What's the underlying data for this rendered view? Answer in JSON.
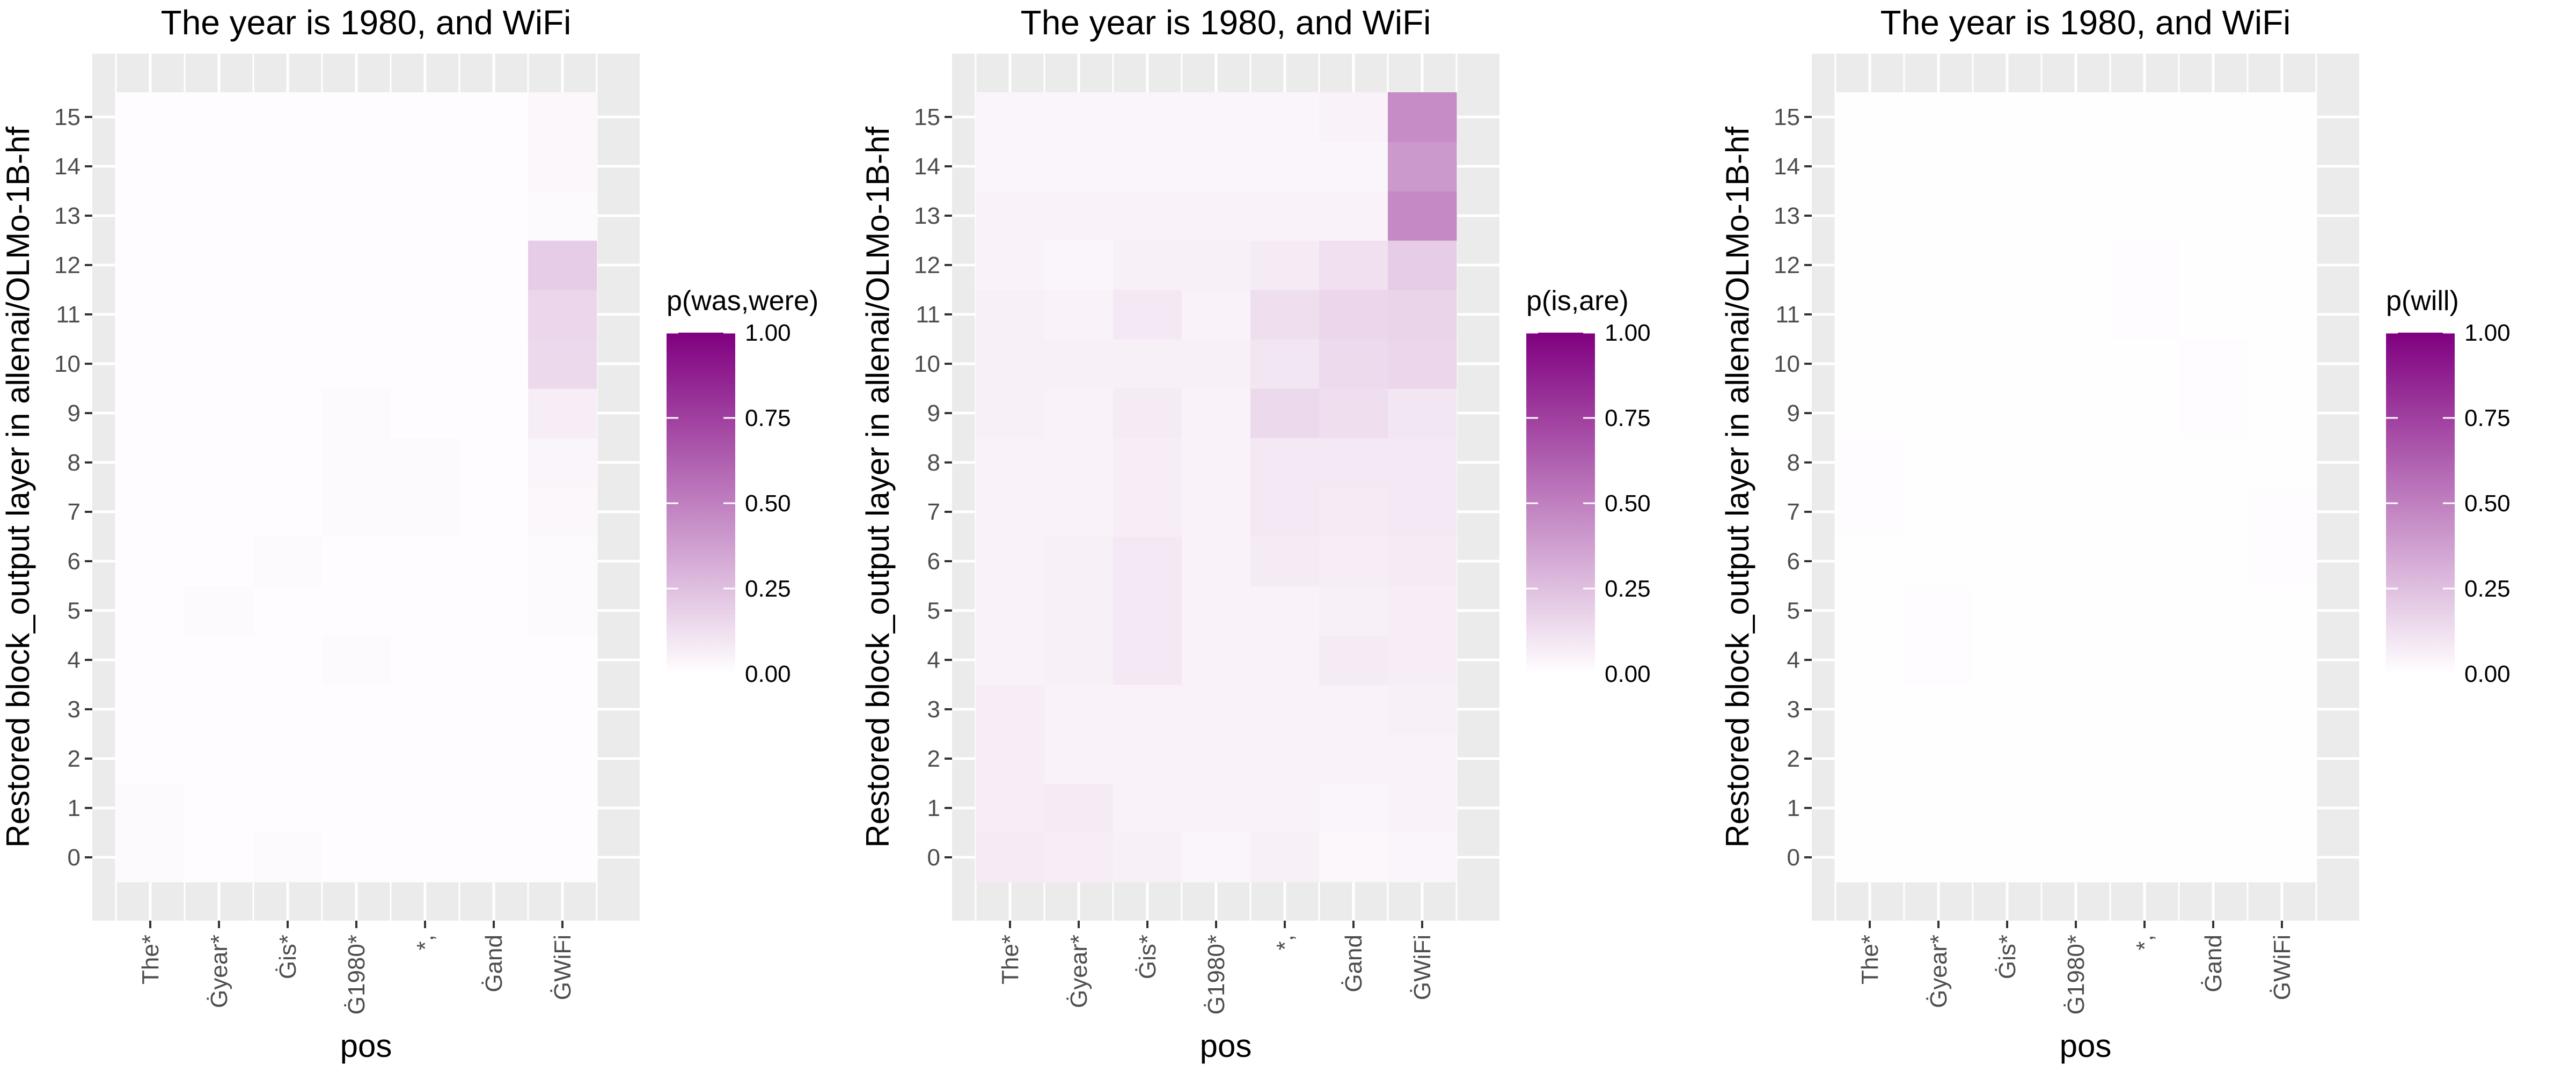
{
  "figure": {
    "palette": {
      "low": "#ffffff",
      "high": "#800080",
      "panel_background": "#ebebeb",
      "grid": "#ffffff",
      "tick_text": "#4d4d4d",
      "tick_mark": "#333333"
    }
  },
  "chart_data": [
    {
      "type": "heatmap",
      "title": "The year is 1980, and WiFi",
      "xlabel": "pos",
      "ylabel": "Restored block_output layer in allenai/OLMo-1B-hf",
      "x_ticks": [
        "The*",
        "Ġyear*",
        "Ġis*",
        "Ġ1980*",
        "*,",
        "Ġand",
        "ĠWiFi"
      ],
      "y_ticks": [
        0,
        1,
        2,
        3,
        4,
        5,
        6,
        7,
        8,
        9,
        10,
        11,
        12,
        13,
        14,
        15
      ],
      "legend": {
        "title": "p(was,were)",
        "breaks": [
          0,
          0.25,
          0.5,
          0.75,
          1
        ],
        "break_labels": [
          "0.00",
          "0.25",
          "0.50",
          "0.75",
          "1.00"
        ],
        "limits": [
          0,
          1
        ]
      },
      "z": [
        [
          0.02,
          0.01,
          0.02,
          0.01,
          0.01,
          0.01,
          0.01
        ],
        [
          0.02,
          0.01,
          0.01,
          0.01,
          0.01,
          0.01,
          0.01
        ],
        [
          0.01,
          0.01,
          0.01,
          0.01,
          0.01,
          0.01,
          0.01
        ],
        [
          0.01,
          0.01,
          0.01,
          0.01,
          0.01,
          0.01,
          0.01
        ],
        [
          0.01,
          0.01,
          0.01,
          0.02,
          0.01,
          0.01,
          0.01
        ],
        [
          0.01,
          0.02,
          0.01,
          0.01,
          0.01,
          0.01,
          0.02
        ],
        [
          0.01,
          0.01,
          0.02,
          0.01,
          0.01,
          0.01,
          0.02
        ],
        [
          0.01,
          0.01,
          0.01,
          0.02,
          0.02,
          0.01,
          0.03
        ],
        [
          0.01,
          0.01,
          0.01,
          0.02,
          0.02,
          0.01,
          0.04
        ],
        [
          0.01,
          0.01,
          0.01,
          0.02,
          0.01,
          0.01,
          0.07
        ],
        [
          0.01,
          0.01,
          0.01,
          0.01,
          0.01,
          0.01,
          0.15
        ],
        [
          0.01,
          0.01,
          0.01,
          0.01,
          0.01,
          0.01,
          0.16
        ],
        [
          0.01,
          0.01,
          0.01,
          0.01,
          0.01,
          0.01,
          0.2
        ],
        [
          0.01,
          0.01,
          0.01,
          0.01,
          0.01,
          0.01,
          0.02
        ],
        [
          0.01,
          0.01,
          0.01,
          0.01,
          0.01,
          0.01,
          0.03
        ],
        [
          0.01,
          0.01,
          0.01,
          0.01,
          0.01,
          0.01,
          0.03
        ]
      ]
    },
    {
      "type": "heatmap",
      "title": "The year is 1980, and WiFi",
      "xlabel": "pos",
      "ylabel": "Restored block_output layer in allenai/OLMo-1B-hf",
      "x_ticks": [
        "The*",
        "Ġyear*",
        "Ġis*",
        "Ġ1980*",
        "*,",
        "Ġand",
        "ĠWiFi"
      ],
      "y_ticks": [
        0,
        1,
        2,
        3,
        4,
        5,
        6,
        7,
        8,
        9,
        10,
        11,
        12,
        13,
        14,
        15
      ],
      "legend": {
        "title": "p(is,are)",
        "breaks": [
          0,
          0.25,
          0.5,
          0.75,
          1
        ],
        "break_labels": [
          "0.00",
          "0.25",
          "0.50",
          "0.75",
          "1.00"
        ],
        "limits": [
          0,
          1
        ]
      },
      "z": [
        [
          0.08,
          0.07,
          0.06,
          0.04,
          0.06,
          0.03,
          0.04
        ],
        [
          0.07,
          0.08,
          0.05,
          0.05,
          0.05,
          0.04,
          0.05
        ],
        [
          0.07,
          0.05,
          0.05,
          0.05,
          0.05,
          0.05,
          0.05
        ],
        [
          0.07,
          0.05,
          0.05,
          0.05,
          0.05,
          0.05,
          0.06
        ],
        [
          0.05,
          0.06,
          0.09,
          0.05,
          0.05,
          0.08,
          0.07
        ],
        [
          0.05,
          0.06,
          0.09,
          0.05,
          0.05,
          0.06,
          0.07
        ],
        [
          0.05,
          0.06,
          0.09,
          0.05,
          0.08,
          0.07,
          0.08
        ],
        [
          0.05,
          0.05,
          0.07,
          0.05,
          0.09,
          0.08,
          0.09
        ],
        [
          0.05,
          0.05,
          0.07,
          0.05,
          0.09,
          0.09,
          0.09
        ],
        [
          0.06,
          0.05,
          0.08,
          0.05,
          0.15,
          0.13,
          0.1
        ],
        [
          0.06,
          0.06,
          0.06,
          0.06,
          0.1,
          0.14,
          0.16
        ],
        [
          0.06,
          0.05,
          0.09,
          0.05,
          0.13,
          0.16,
          0.17
        ],
        [
          0.05,
          0.04,
          0.06,
          0.06,
          0.08,
          0.12,
          0.2
        ],
        [
          0.05,
          0.05,
          0.05,
          0.05,
          0.05,
          0.05,
          0.46
        ],
        [
          0.04,
          0.04,
          0.04,
          0.04,
          0.04,
          0.04,
          0.4
        ],
        [
          0.04,
          0.04,
          0.04,
          0.04,
          0.04,
          0.05,
          0.45
        ]
      ]
    },
    {
      "type": "heatmap",
      "title": "The year is 1980, and WiFi",
      "xlabel": "pos",
      "ylabel": "Restored block_output layer in allenai/OLMo-1B-hf",
      "x_ticks": [
        "The*",
        "Ġyear*",
        "Ġis*",
        "Ġ1980*",
        "*,",
        "Ġand",
        "ĠWiFi"
      ],
      "y_ticks": [
        0,
        1,
        2,
        3,
        4,
        5,
        6,
        7,
        8,
        9,
        10,
        11,
        12,
        13,
        14,
        15
      ],
      "legend": {
        "title": "p(will)",
        "breaks": [
          0,
          0.25,
          0.5,
          0.75,
          1
        ],
        "break_labels": [
          "0.00",
          "0.25",
          "0.50",
          "0.75",
          "1.00"
        ],
        "limits": [
          0,
          1
        ]
      },
      "z": [
        [
          0.005,
          0.005,
          0.005,
          0.005,
          0.005,
          0.005,
          0.005
        ],
        [
          0.005,
          0.005,
          0.005,
          0.005,
          0.005,
          0.005,
          0.005
        ],
        [
          0.005,
          0.005,
          0.005,
          0.005,
          0.005,
          0.005,
          0.005
        ],
        [
          0.005,
          0.005,
          0.005,
          0.005,
          0.005,
          0.005,
          0.005
        ],
        [
          0.005,
          0.01,
          0.005,
          0.005,
          0.005,
          0.005,
          0.005
        ],
        [
          0.005,
          0.01,
          0.005,
          0.005,
          0.005,
          0.005,
          0.005
        ],
        [
          0.005,
          0.005,
          0.005,
          0.005,
          0.005,
          0.005,
          0.01
        ],
        [
          0.01,
          0.005,
          0.005,
          0.005,
          0.005,
          0.005,
          0.01
        ],
        [
          0.01,
          0.005,
          0.005,
          0.005,
          0.005,
          0.005,
          0.005
        ],
        [
          0.005,
          0.005,
          0.005,
          0.005,
          0.005,
          0.01,
          0.005
        ],
        [
          0.005,
          0.005,
          0.005,
          0.005,
          0.005,
          0.01,
          0.005
        ],
        [
          0.005,
          0.005,
          0.005,
          0.005,
          0.01,
          0.005,
          0.005
        ],
        [
          0.005,
          0.005,
          0.005,
          0.005,
          0.01,
          0.005,
          0.005
        ],
        [
          0.005,
          0.005,
          0.005,
          0.005,
          0.005,
          0.005,
          0.005
        ],
        [
          0.005,
          0.005,
          0.005,
          0.005,
          0.005,
          0.005,
          0.005
        ],
        [
          0.005,
          0.005,
          0.005,
          0.005,
          0.005,
          0.005,
          0.005
        ]
      ]
    }
  ]
}
